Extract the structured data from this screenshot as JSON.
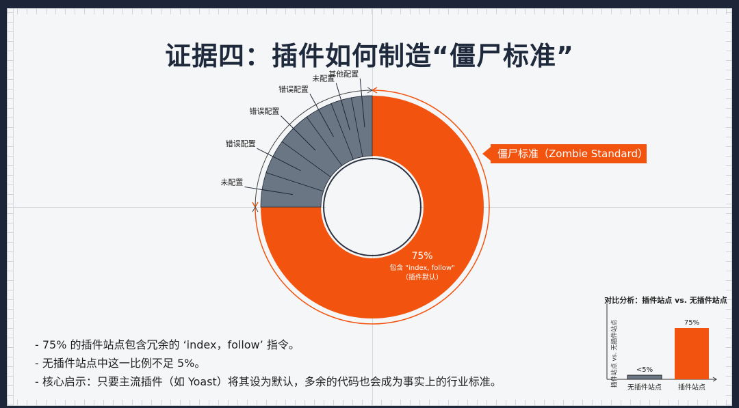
{
  "slide": {
    "title": "证据四：插件如何制造“僵尸标准”",
    "callout": "僵尸标准（Zombie Standard）",
    "bullets": [
      "- 75% 的插件站点包含冗余的 ‘index，follow’ 指令。",
      "- 无插件站点中这一比例不足 5%。",
      "- 核心启示：只要主流插件（如 Yoast）将其设为默认，多余的代码也会成为事实上的行业标准。"
    ]
  },
  "chart_data": [
    {
      "type": "pie",
      "variant": "donut",
      "slices": [
        {
          "label": "",
          "value": 75,
          "color": "#f2540f"
        },
        {
          "label": "未配置",
          "value": 5,
          "color": "#6b7685"
        },
        {
          "label": "错误配置",
          "value": 5,
          "color": "#6b7685"
        },
        {
          "label": "错误配置",
          "value": 5,
          "color": "#6b7685"
        },
        {
          "label": "错误配置",
          "value": 4,
          "color": "#6b7685"
        },
        {
          "label": "未配置",
          "value": 3,
          "color": "#6b7685"
        },
        {
          "label": "其他配置",
          "value": 3,
          "color": "#6b7685"
        }
      ],
      "center_annotation": {
        "value": "75%",
        "line1": "包含 \"index, follow\"",
        "line2": "（插件默认）"
      }
    },
    {
      "type": "bar",
      "title": "对比分析：插件站点 vs. 无插件站点",
      "ylabel": "插件站点 vs. 无插件站点",
      "categories": [
        "无插件站点",
        "插件站点"
      ],
      "values": [
        5,
        75
      ],
      "data_labels": [
        "<5%",
        "75%"
      ],
      "colors": [
        "#6b7685",
        "#f2540f"
      ]
    }
  ]
}
